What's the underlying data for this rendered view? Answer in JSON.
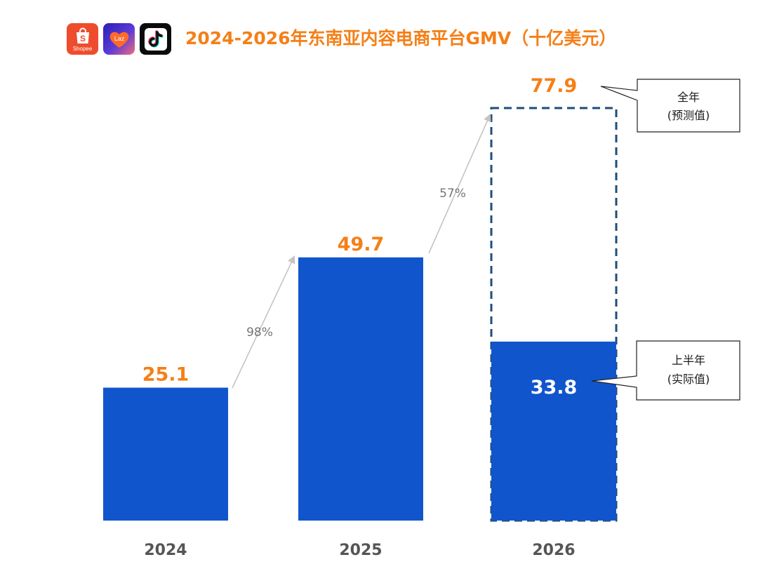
{
  "title": "2024-2026年东南亚内容电商平台GMV（十亿美元）",
  "logos": [
    {
      "name": "shopee-logo",
      "text": "Shopee"
    },
    {
      "name": "lazada-logo",
      "text": "Laz"
    },
    {
      "name": "tiktok-logo",
      "text": ""
    }
  ],
  "colors": {
    "bar": "#1155cc",
    "value_label": "#f57f17",
    "forecast_outline": "#1f4e79",
    "arrow": "#c4c4c4",
    "growth_text": "#757575",
    "axis_label": "#555555"
  },
  "chart_data": {
    "type": "bar",
    "title": "2024-2026年东南亚内容电商平台GMV（十亿美元）",
    "categories": [
      "2024",
      "2025",
      "2026"
    ],
    "series": [
      {
        "values": [
          25.1,
          49.7,
          33.8
        ],
        "labels": [
          "25.1",
          "49.7",
          "33.8"
        ]
      },
      {
        "values": [
          null,
          null,
          77.9
        ],
        "labels": [
          "",
          "",
          "77.9"
        ],
        "style": "dashed-outline"
      }
    ],
    "growth_annotations": [
      {
        "from": "2024",
        "to": "2025",
        "label": "98%"
      },
      {
        "from": "2025",
        "to": "2026",
        "label": "57%"
      }
    ],
    "callouts": [
      {
        "target": "2026-forecast",
        "lines": [
          "全年",
          "(预测值)"
        ]
      },
      {
        "target": "2026-actual",
        "lines": [
          "上半年",
          "(实际值)"
        ]
      }
    ],
    "ylim": [
      0,
      80
    ],
    "grid": false,
    "legend": "none"
  }
}
